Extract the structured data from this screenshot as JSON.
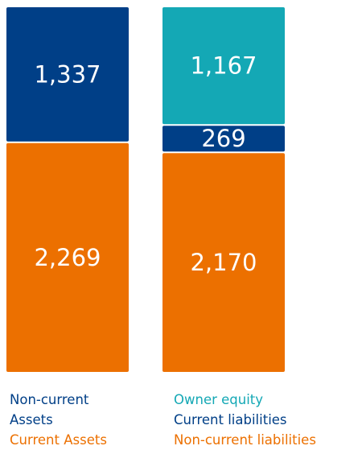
{
  "chart_data": {
    "type": "stacked-bar",
    "categories": [
      null,
      null
    ],
    "series": [
      {
        "name": "Non-current Assets",
        "color": "#003f87",
        "values": [
          1337,
          null
        ],
        "value_labels": [
          "1,337",
          null
        ]
      },
      {
        "name": "Current Assets",
        "color": "#ec7000",
        "values": [
          2269,
          null
        ],
        "value_labels": [
          "2,269",
          null
        ]
      },
      {
        "name": "Owner equity",
        "color": "#14a8b5",
        "values": [
          null,
          1167
        ],
        "value_labels": [
          null,
          "1,167"
        ]
      },
      {
        "name": "Current liabilities",
        "color": "#003f87",
        "values": [
          null,
          269
        ],
        "value_labels": [
          null,
          "269"
        ]
      },
      {
        "name": "Non-current liabilities",
        "color": "#ec7000",
        "values": [
          null,
          2170
        ],
        "value_labels": [
          null,
          "2,170"
        ]
      }
    ]
  }
}
